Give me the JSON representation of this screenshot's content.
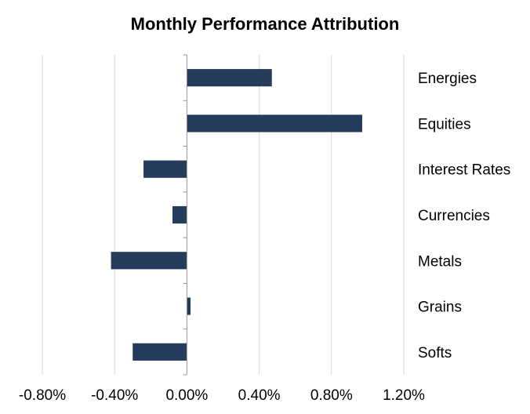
{
  "chart_data": {
    "type": "bar",
    "orientation": "horizontal",
    "title": "Monthly Performance Attribution",
    "xlabel": "",
    "ylabel": "",
    "categories": [
      "Energies",
      "Equities",
      "Interest Rates",
      "Currencies",
      "Metals",
      "Grains",
      "Softs"
    ],
    "values": [
      0.47,
      0.97,
      -0.24,
      -0.08,
      -0.42,
      0.02,
      -0.3
    ],
    "value_unit": "%",
    "xlim": [
      -0.8,
      1.2
    ],
    "x_ticks": [
      -0.8,
      -0.4,
      0.0,
      0.4,
      0.8,
      1.2
    ],
    "x_tick_labels": [
      "-0.80%",
      "-0.40%",
      "0.00%",
      "0.40%",
      "0.80%",
      "1.20%"
    ],
    "grid": "vertical",
    "legend": "none",
    "category_label_position": "right",
    "colors": {
      "bar": "#243B5C",
      "grid": "#D9D9D9",
      "axis": "#999999",
      "text": "#000000"
    }
  }
}
